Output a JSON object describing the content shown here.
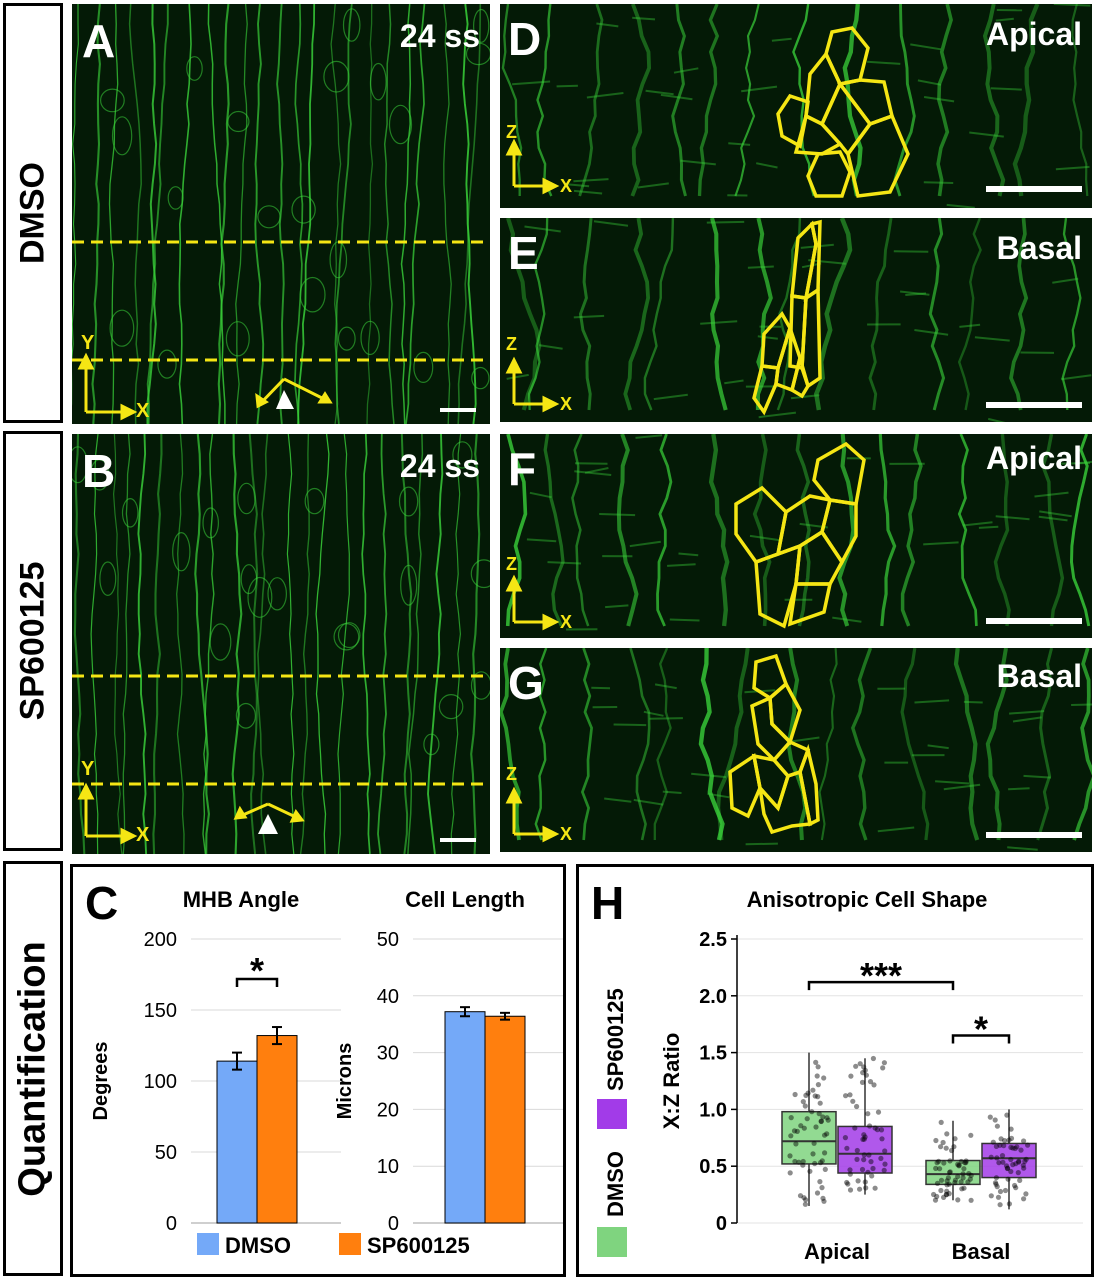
{
  "row_labels": {
    "top": "DMSO",
    "middle": "SP600125",
    "bottom": "Quantification"
  },
  "panels": {
    "A": {
      "letter": "A",
      "tag": "24 ss"
    },
    "B": {
      "letter": "B",
      "tag": "24 ss"
    },
    "D": {
      "letter": "D",
      "tag": "Apical"
    },
    "E": {
      "letter": "E",
      "tag": "Basal"
    },
    "F": {
      "letter": "F",
      "tag": "Apical"
    },
    "G": {
      "letter": "G",
      "tag": "Basal"
    }
  },
  "axes_labels": {
    "yx_y": "Y",
    "yx_x": "X",
    "zx_z": "Z",
    "zx_x": "X"
  },
  "colors": {
    "membrane": "#3ad23a",
    "background": "#041a06",
    "overlay": "#f5e614",
    "dmso_bar": "#74a9f8",
    "sp_bar": "#ff7f0e",
    "dmso_box": "#7fd47f",
    "sp_box": "#a23be8"
  },
  "panel_C": {
    "letter": "C",
    "legend": {
      "dmso": "DMSO",
      "sp": "SP600125"
    },
    "chart_data": [
      {
        "type": "bar",
        "title": "MHB Angle",
        "ylabel": "Degrees",
        "ylim": [
          0,
          200
        ],
        "yticks": [
          "0",
          "50",
          "100",
          "150",
          "200"
        ],
        "series": [
          {
            "name": "DMSO",
            "values": [
              114
            ],
            "error": [
              6
            ]
          },
          {
            "name": "SP600125",
            "values": [
              132
            ],
            "error": [
              6
            ]
          }
        ],
        "annotation": "*",
        "grid": true
      },
      {
        "type": "bar",
        "title": "Cell Length",
        "ylabel": "Microns",
        "ylim": [
          0,
          50
        ],
        "yticks": [
          "0",
          "10",
          "20",
          "30",
          "40",
          "50"
        ],
        "series": [
          {
            "name": "DMSO",
            "values": [
              37.2
            ],
            "error": [
              0.8
            ]
          },
          {
            "name": "SP600125",
            "values": [
              36.4
            ],
            "error": [
              0.6
            ]
          }
        ],
        "grid": true
      }
    ]
  },
  "panel_H": {
    "letter": "H",
    "legend": {
      "dmso": "DMSO",
      "sp": "SP600125"
    },
    "chart_data": {
      "type": "box",
      "title": "Anisotropic Cell Shape",
      "ylabel": "X:Z Ratio",
      "ylim": [
        0,
        2.5
      ],
      "yticks": [
        "0",
        "0.5",
        "1.0",
        "1.5",
        "2.0",
        "2.5"
      ],
      "categories": [
        "Apical",
        "Basal"
      ],
      "series": [
        {
          "name": "DMSO",
          "boxes": [
            {
              "whislo": 0.15,
              "q1": 0.52,
              "med": 0.72,
              "q3": 0.98,
              "whishi": 1.5
            },
            {
              "whislo": 0.2,
              "q1": 0.34,
              "med": 0.43,
              "q3": 0.55,
              "whishi": 0.9
            }
          ]
        },
        {
          "name": "SP600125",
          "boxes": [
            {
              "whislo": 0.25,
              "q1": 0.44,
              "med": 0.61,
              "q3": 0.85,
              "whishi": 1.45
            },
            {
              "whislo": 0.12,
              "q1": 0.4,
              "med": 0.57,
              "q3": 0.7,
              "whishi": 1.0
            }
          ]
        }
      ],
      "significance": [
        {
          "label": "***",
          "between": "Apical DMSO – Basal DMSO"
        },
        {
          "label": "*",
          "between": "Basal DMSO – Basal SP600125"
        }
      ],
      "grid": true
    }
  }
}
